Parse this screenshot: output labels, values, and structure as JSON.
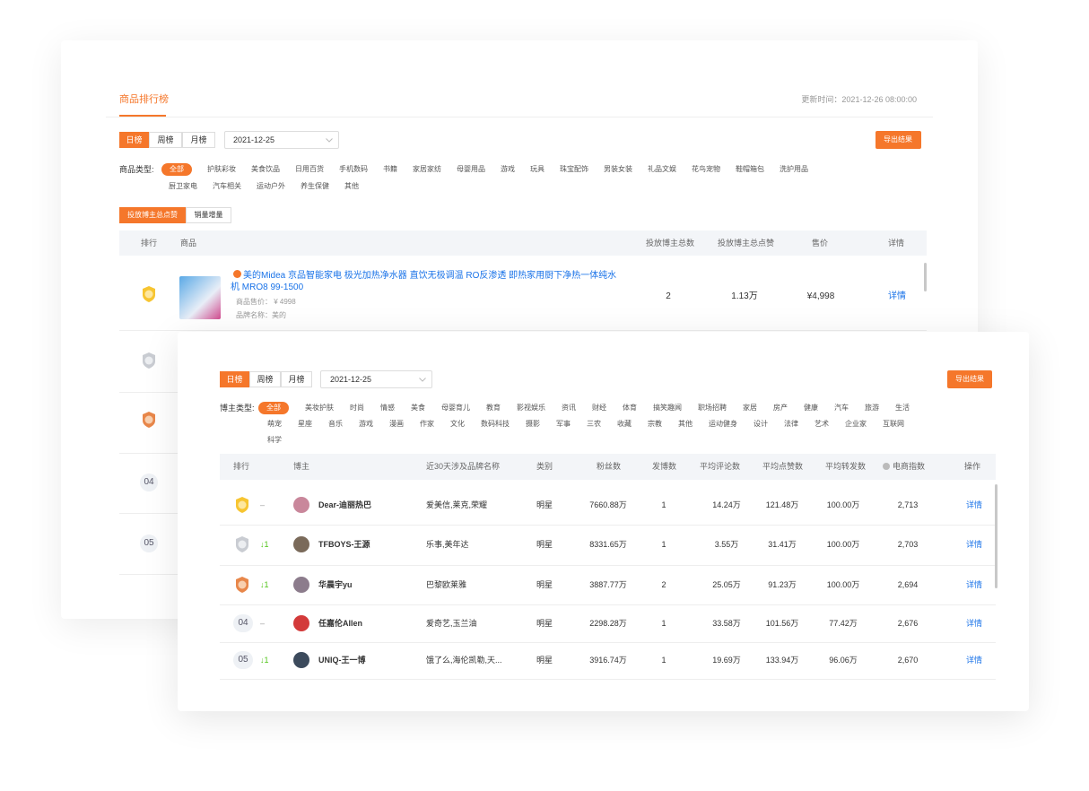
{
  "back": {
    "title": "商品排行榜",
    "update_time": "更新时间：2021-12-26 08:00:00",
    "periods": [
      "日榜",
      "周榜",
      "月榜"
    ],
    "date": "2021-12-25",
    "export": "导出结果",
    "category_label": "商品类型:",
    "categories": [
      "全部",
      "护肤彩妆",
      "美食饮品",
      "日用百货",
      "手机数码",
      "书籍",
      "家居家纺",
      "母婴用品",
      "游戏",
      "玩具",
      "珠宝配饰",
      "男装女装",
      "礼品文娱",
      "花鸟宠物",
      "鞋帽箱包",
      "洗护用品",
      "厨卫家电",
      "汽车相关",
      "运动户外",
      "养生保健",
      "其他"
    ],
    "sort_tabs": [
      "投放博主总点赞",
      "销量增量"
    ],
    "table": {
      "headers": [
        "排行",
        "商品",
        "投放博主总数",
        "投放博主总点赞",
        "售价",
        "详情"
      ],
      "rows": [
        {
          "title": "美的Midea 京品智能家电 极光加热净水器 直饮无极调温 RO反渗透 即热家用厨下净热一体纯水机 MRO8 99-1500",
          "price_line": "商品售价： ¥ 4998",
          "brand_line": "品牌名称：美的",
          "bloggers": 2,
          "likes": "1.13万",
          "price": "¥4,998",
          "action": "详情"
        }
      ],
      "other_ranks": [
        "04",
        "05"
      ]
    }
  },
  "front": {
    "periods": [
      "日榜",
      "周榜",
      "月榜"
    ],
    "date": "2021-12-25",
    "export": "导出结果",
    "category_label": "博主类型:",
    "categories": [
      "全部",
      "美妆护肤",
      "时尚",
      "情感",
      "美食",
      "母婴育儿",
      "教育",
      "影视娱乐",
      "资讯",
      "财经",
      "体育",
      "搞笑趣闻",
      "职场招聘",
      "家居",
      "房产",
      "健康",
      "汽车",
      "旅游",
      "生活",
      "萌宠",
      "星座",
      "音乐",
      "游戏",
      "漫画",
      "作家",
      "文化",
      "数码科技",
      "摄影",
      "军事",
      "三农",
      "收藏",
      "宗教",
      "其他",
      "运动健身",
      "设计",
      "法律",
      "艺术",
      "企业家",
      "互联网",
      "科学"
    ],
    "table": {
      "headers": [
        "排行",
        "博主",
        "近30天涉及品牌名称",
        "类别",
        "粉丝数",
        "发博数",
        "平均评论数",
        "平均点赞数",
        "平均转发数",
        "电商指数",
        "操作"
      ],
      "rows": [
        {
          "change": "–",
          "name": "Dear-迪丽热巴",
          "brands": "爱美信,莱克,荣耀",
          "category": "明星",
          "fans": "7660.88万",
          "posts": 1,
          "avg_comments": "14.24万",
          "avg_likes": "121.48万",
          "avg_shares": "100.00万",
          "index": "2,713",
          "action": "详情"
        },
        {
          "change": "↓1",
          "name": "TFBOYS-王源",
          "brands": "乐事,美年达",
          "category": "明星",
          "fans": "8331.65万",
          "posts": 1,
          "avg_comments": "3.55万",
          "avg_likes": "31.41万",
          "avg_shares": "100.00万",
          "index": "2,703",
          "action": "详情"
        },
        {
          "change": "↓1",
          "name": "华晨宇yu",
          "brands": "巴黎欧莱雅",
          "category": "明星",
          "fans": "3887.77万",
          "posts": 2,
          "avg_comments": "25.05万",
          "avg_likes": "91.23万",
          "avg_shares": "100.00万",
          "index": "2,694",
          "action": "详情"
        },
        {
          "rank": "04",
          "change": "–",
          "name": "任嘉伦Allen",
          "brands": "爱奇艺,玉兰油",
          "category": "明星",
          "fans": "2298.28万",
          "posts": 1,
          "avg_comments": "33.58万",
          "avg_likes": "101.56万",
          "avg_shares": "77.42万",
          "index": "2,676",
          "action": "详情"
        },
        {
          "rank": "05",
          "change": "↓1",
          "name": "UNIQ-王一博",
          "brands": "饿了么,海伦凯勒,天...",
          "category": "明星",
          "fans": "3916.74万",
          "posts": 1,
          "avg_comments": "19.69万",
          "avg_likes": "133.94万",
          "avg_shares": "96.06万",
          "index": "2,670",
          "action": "详情"
        }
      ]
    }
  }
}
